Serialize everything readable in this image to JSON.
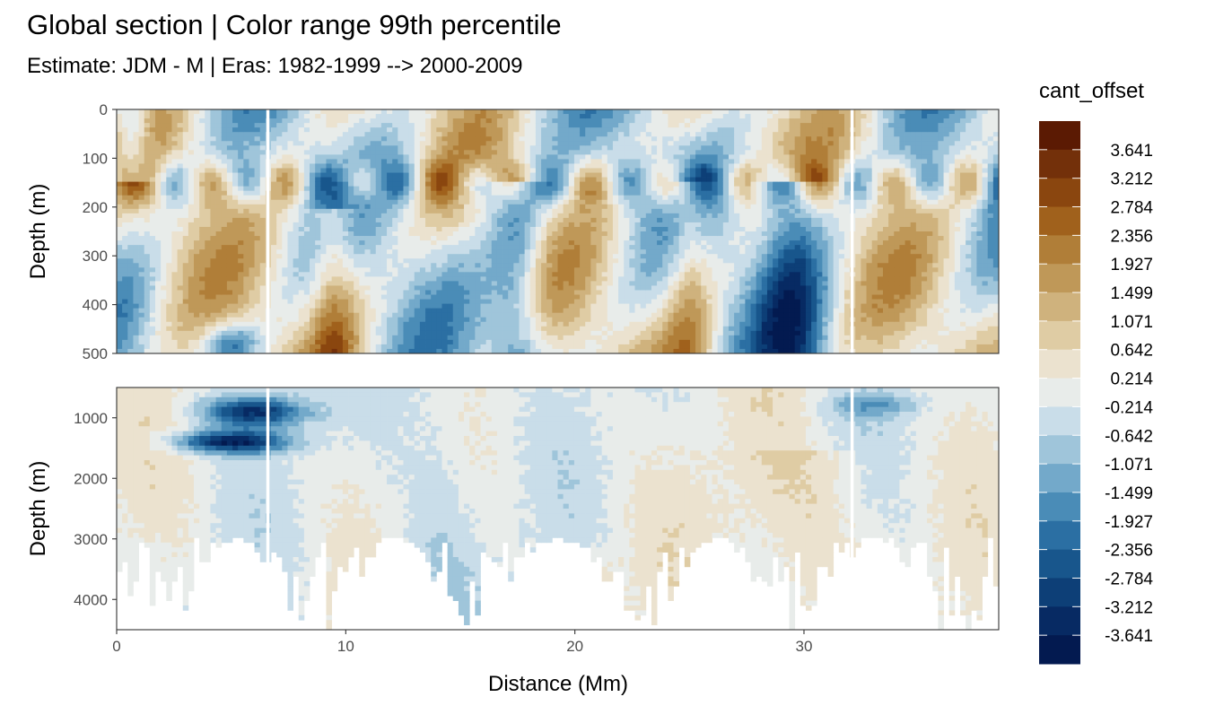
{
  "chart_data": {
    "type": "heatmap",
    "title": "Global section | Color range 99th percentile",
    "subtitle": "Estimate: JDM - M | Eras: 1982-1999 --> 2000-2009",
    "xlabel": "Distance (Mm)",
    "ylabel": "Depth (m)",
    "xlim": [
      0,
      38.5
    ],
    "x_ticks": [
      0,
      10,
      20,
      30
    ],
    "grid": true,
    "panels": [
      {
        "ylim": [
          0,
          500
        ],
        "y_ticks": [
          0,
          100,
          200,
          300,
          400,
          500
        ],
        "reversed": true
      },
      {
        "ylim": [
          500,
          4500
        ],
        "y_ticks": [
          1000,
          2000,
          3000,
          4000
        ],
        "reversed": true
      }
    ],
    "section_breaks_x": [
      6.6,
      32.1
    ],
    "legend": {
      "title": "cant_offset",
      "position": "right",
      "labels": [
        "3.641",
        "3.212",
        "2.784",
        "2.356",
        "1.927",
        "1.499",
        "1.071",
        "0.642",
        "0.214",
        "-0.214",
        "-0.642",
        "-1.071",
        "-1.499",
        "-1.927",
        "-2.356",
        "-2.784",
        "-3.212",
        "-3.641"
      ],
      "colors": [
        "#5b1a03",
        "#73300a",
        "#8a460f",
        "#a0611c",
        "#b07e38",
        "#bf9858",
        "#cfb27d",
        "#dfcca4",
        "#ebe2cf",
        "#e8ecea",
        "#c9dde9",
        "#9fc5da",
        "#73a9ca",
        "#4a8cb7",
        "#2b6fa3",
        "#18568c",
        "#0d3f77",
        "#072a63",
        "#031a50"
      ]
    }
  }
}
